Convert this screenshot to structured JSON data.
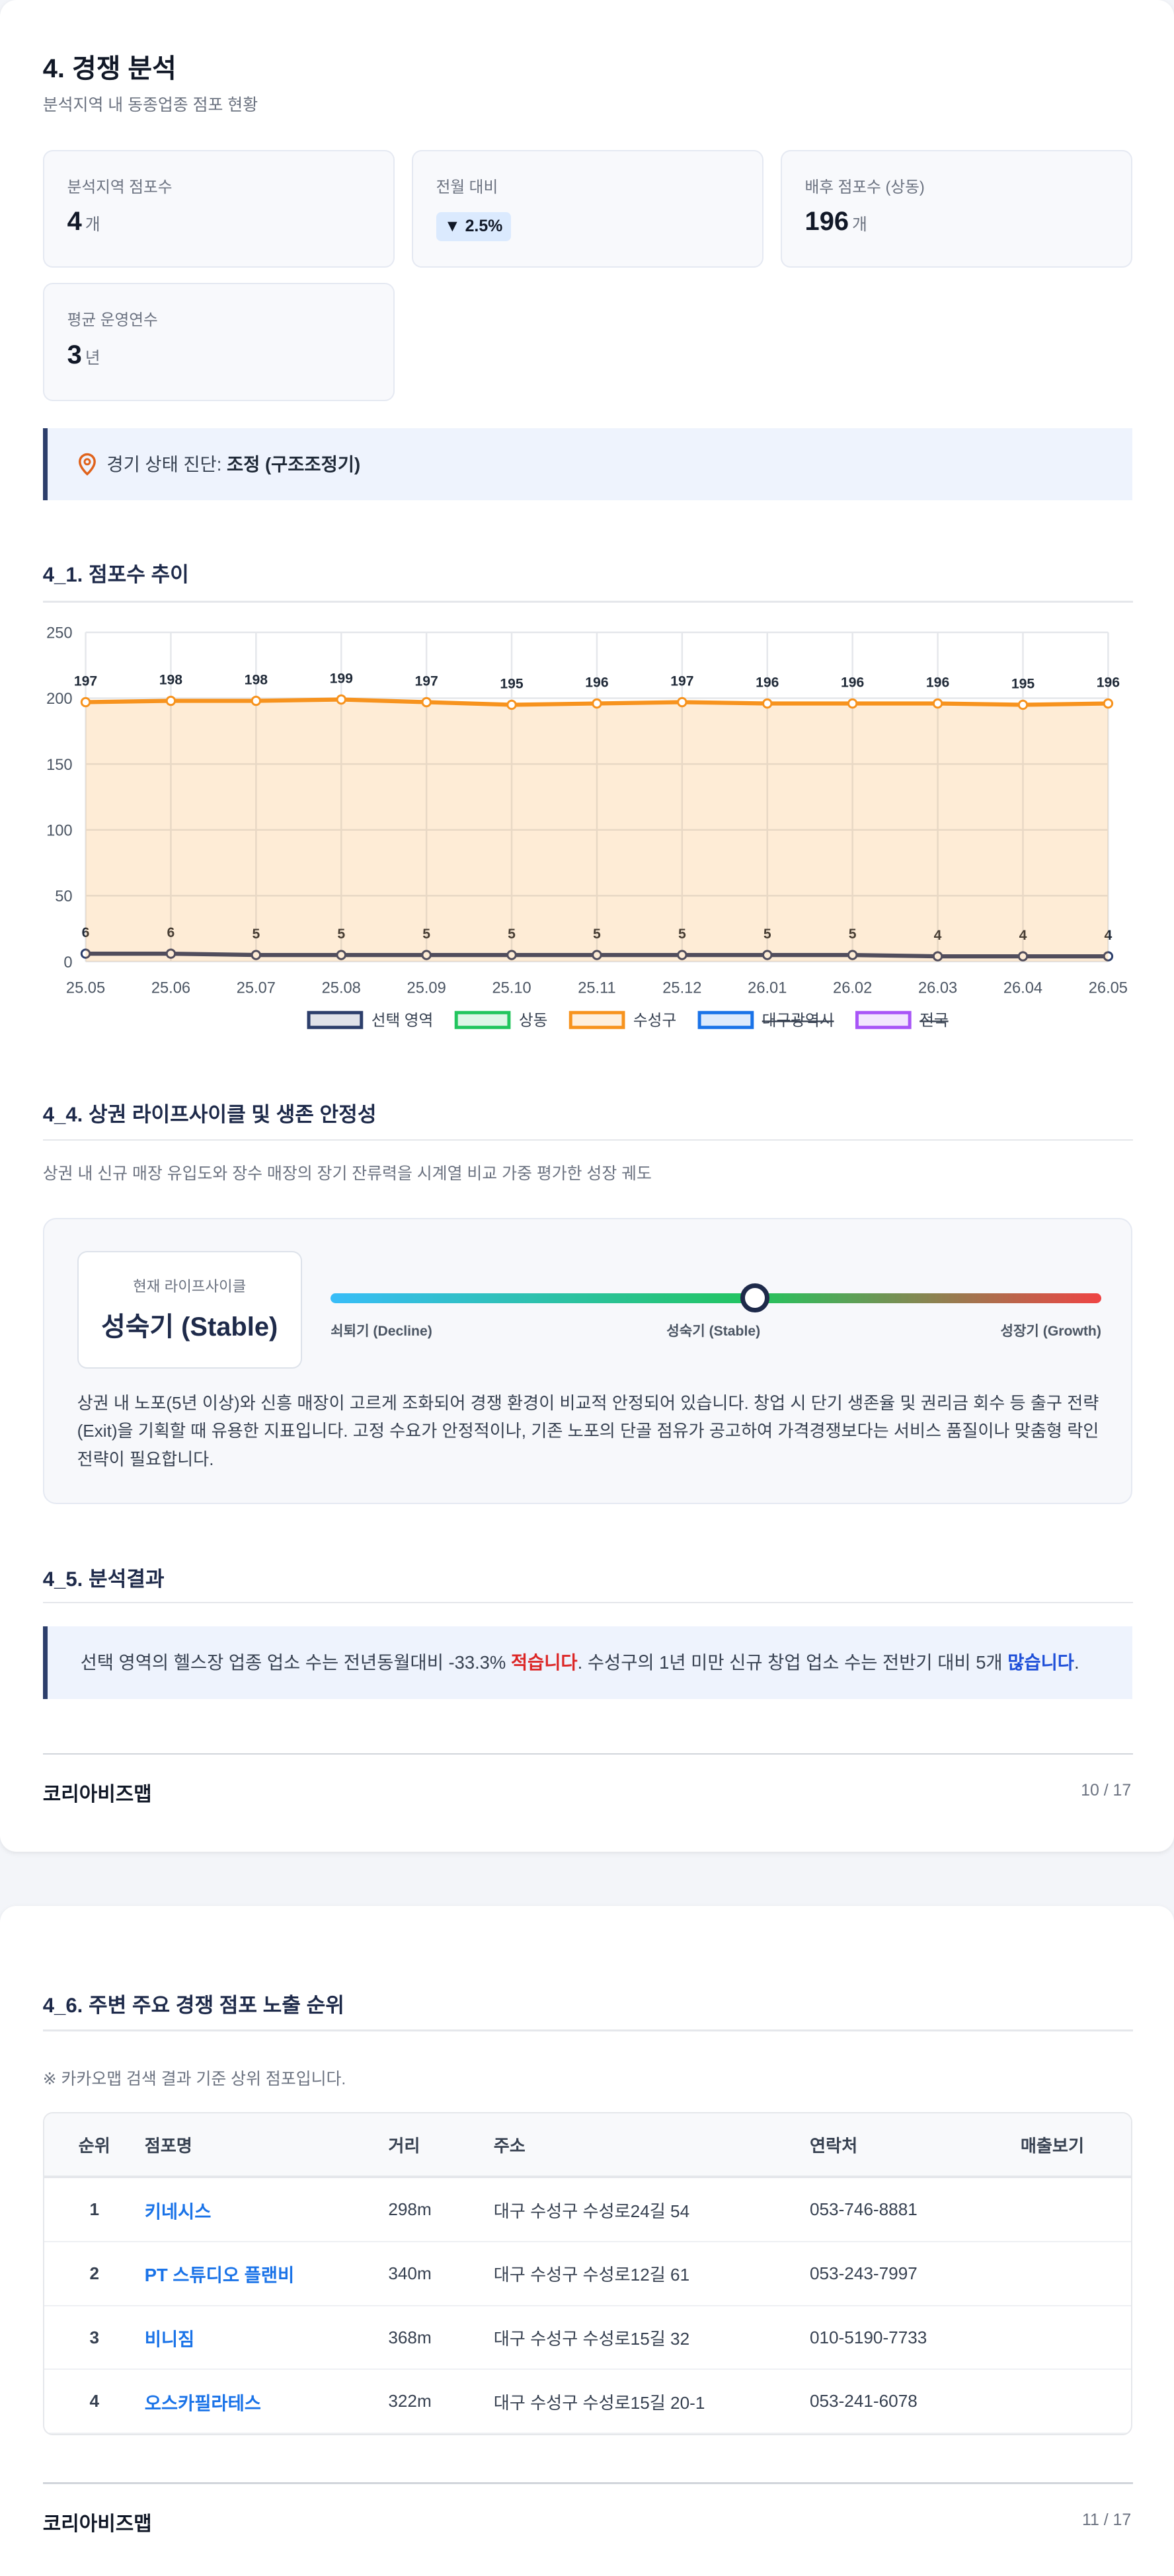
{
  "page1": {
    "title": "4. 경쟁 분석",
    "subtitle": "분석지역 내 동종업종 점포 현황",
    "stats": [
      {
        "label": "분석지역 점포수",
        "value": "4",
        "unit": "개"
      },
      {
        "label": "전월 대비",
        "value": "▼ 2.5%"
      },
      {
        "label": "배후 점포수 (상동)",
        "value": "196",
        "unit": "개"
      },
      {
        "label": "평균 운영연수",
        "value": "3",
        "unit": "년"
      }
    ],
    "diagnosis": {
      "label": "경기 상태 진단:",
      "value": "조정 (구조조정기)"
    },
    "chart_heading": "4_1. 점포수 추이",
    "lifecycle": {
      "heading": "4_4. 상권 라이프사이클 및 생존 안정성",
      "subtitle": "상권 내 신규 매장 유입도와 장수 매장의 장기 잔류력을 시계열 비교 가중 평가한 성장 궤도",
      "card_label": "현재 라이프사이클",
      "card_value": "성숙기 (Stable)",
      "scale_labels": [
        "쇠퇴기 (Decline)",
        "성숙기 (Stable)",
        "성장기 (Growth)"
      ],
      "description": "상권 내 노포(5년 이상)와 신흥 매장이 고르게 조화되어 경쟁 환경이 비교적 안정되어 있습니다. 창업 시 단기 생존율 및 권리금 회수 등 출구 전략(Exit)을 기획할 때 유용한 지표입니다. 고정 수요가 안정적이나, 기존 노포의 단골 점유가 공고하여 가격경쟁보다는 서비스 품질이나 맞춤형 락인 전략이 필요합니다."
    },
    "result": {
      "heading": "4_5. 분석결과",
      "parts": [
        "선택 영역의 헬스장 업종 업소 수는 전년동월대비 -33.3% ",
        "적습니다",
        ". 수성구의 1년 미만 신규 창업 업소 수는 전반기 대비 5개 ",
        "많습니다",
        "."
      ]
    },
    "footer": {
      "brand": "코리아비즈맵",
      "page": "10 / 17"
    }
  },
  "page2": {
    "heading": "4_6. 주변 주요 경쟁 점포 노출 순위",
    "note": "※ 카카오맵 검색 결과 기준 상위 점포입니다.",
    "table": {
      "headers": [
        "순위",
        "점포명",
        "거리",
        "주소",
        "연락처",
        "매출보기"
      ],
      "rows": [
        [
          "1",
          "키네시스",
          "298m",
          "대구 수성구 수성로24길 54",
          "053-746-8881"
        ],
        [
          "2",
          "PT 스튜디오 플랜비",
          "340m",
          "대구 수성구 수성로12길 61",
          "053-243-7997"
        ],
        [
          "3",
          "비니짐",
          "368m",
          "대구 수성구 수성로15길 32",
          "010-5190-7733"
        ],
        [
          "4",
          "오스카필라테스",
          "322m",
          "대구 수성구 수성로15길 20-1",
          "053-241-6078"
        ]
      ]
    },
    "footer": {
      "brand": "코리아비즈맵",
      "page": "11 / 17"
    }
  },
  "chart_data": {
    "type": "line",
    "categories": [
      "25.05",
      "25.06",
      "25.07",
      "25.08",
      "25.09",
      "25.10",
      "25.11",
      "25.12",
      "26.01",
      "26.02",
      "26.03",
      "26.04",
      "26.05"
    ],
    "ylim": [
      0,
      250
    ],
    "yticks": [
      0,
      50,
      100,
      150,
      200,
      250
    ],
    "grid": true,
    "legend": "bottom",
    "series": [
      {
        "name": "선택 영역",
        "color": "#2c3e6b",
        "values": [
          6,
          6,
          5,
          5,
          5,
          5,
          5,
          5,
          5,
          5,
          4,
          4,
          4
        ]
      },
      {
        "name": "상동",
        "color": "#22c55e",
        "values": [
          null,
          null,
          null,
          null,
          null,
          null,
          null,
          null,
          null,
          null,
          null,
          null,
          null
        ]
      },
      {
        "name": "수성구",
        "color": "#f7931e",
        "area": true,
        "values": [
          197,
          198,
          198,
          199,
          197,
          195,
          196,
          197,
          196,
          196,
          196,
          195,
          196
        ]
      },
      {
        "name": "대구광역시",
        "color": "#1a73e8",
        "hidden": true,
        "values": [
          null,
          null,
          null,
          null,
          null,
          null,
          null,
          null,
          null,
          null,
          null,
          null,
          null
        ]
      },
      {
        "name": "전국",
        "color": "#a855f7",
        "hidden": true,
        "values": [
          null,
          null,
          null,
          null,
          null,
          null,
          null,
          null,
          null,
          null,
          null,
          null,
          null
        ]
      }
    ]
  }
}
